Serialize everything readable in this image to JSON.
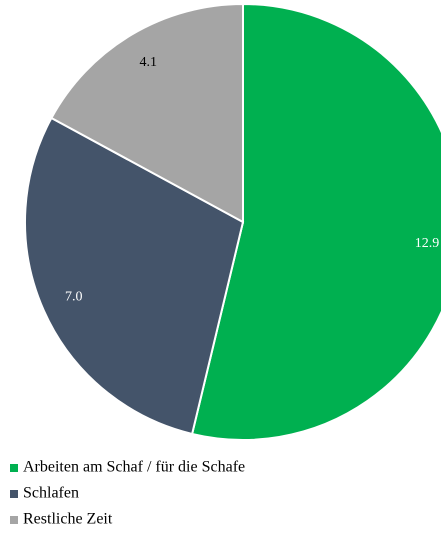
{
  "chart_data": {
    "type": "pie",
    "categories": [
      "Arbeiten am Schaf / für die Schafe",
      "Schlafen",
      "Restliche Zeit"
    ],
    "values": [
      12.9,
      7.0,
      4.1
    ],
    "value_labels": [
      "12.9",
      "7.0",
      "4.1"
    ],
    "colors": [
      "#00b050",
      "#44546a",
      "#a5a5a5"
    ],
    "label_colors": [
      "#ffffff",
      "#ffffff",
      "#000000"
    ],
    "legend": "bottom"
  }
}
